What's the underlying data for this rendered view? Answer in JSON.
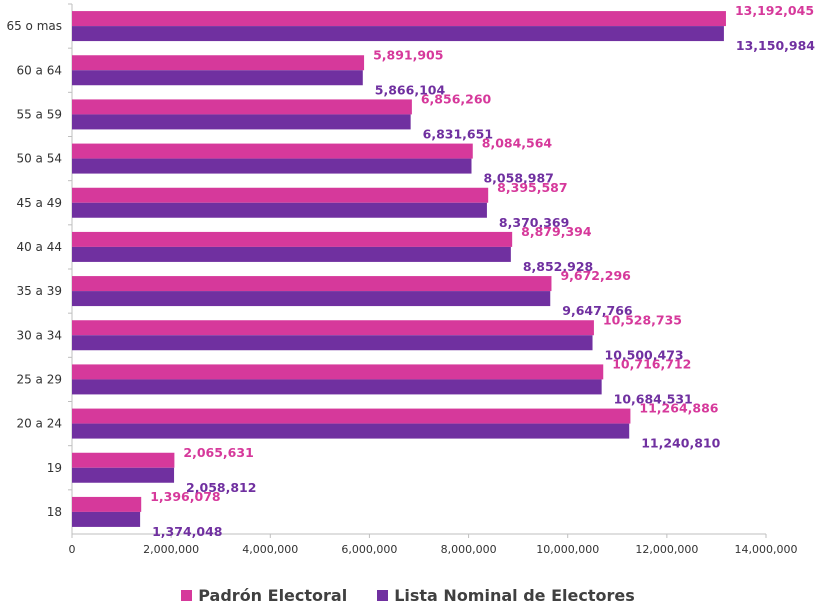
{
  "chart_data": {
    "type": "bar",
    "orientation": "horizontal",
    "categories": [
      "65 o mas",
      "60 a 64",
      "55 a 59",
      "50 a 54",
      "45 a 49",
      "40 a 44",
      "35 a 39",
      "30 a 34",
      "25 a 29",
      "20 a 24",
      "19",
      "18"
    ],
    "series": [
      {
        "name": "Padrón Electoral",
        "color": "#d6399b",
        "values": [
          13192045,
          5891905,
          6856260,
          8084564,
          8395587,
          8879394,
          9672296,
          10528735,
          10716712,
          11264886,
          2065631,
          1396078
        ],
        "labels": [
          "13,192,045",
          "5,891,905",
          "6,856,260",
          "8,084,564",
          "8,395,587",
          "8,879,394",
          "9,672,296",
          "10,528,735",
          "10,716,712",
          "11,264,886",
          "2,065,631",
          "1,396,078"
        ]
      },
      {
        "name": "Lista Nominal de Electores",
        "color": "#7030a0",
        "values": [
          13150984,
          5866104,
          6831651,
          8058987,
          8370369,
          8852928,
          9647766,
          10500473,
          10684531,
          11240810,
          2058812,
          1374048
        ],
        "labels": [
          "13,150,984",
          "5,866,104",
          "6,831,651",
          "8,058,987",
          "8,370,369",
          "8,852,928",
          "9,647,766",
          "10,500,473",
          "10,684,531",
          "11,240,810",
          "2,058,812",
          "1,374,048"
        ]
      }
    ],
    "xlim": [
      0,
      14000000
    ],
    "x_ticks": [
      0,
      2000000,
      4000000,
      6000000,
      8000000,
      10000000,
      12000000,
      14000000
    ],
    "x_tick_labels": [
      "0",
      "2,000,000",
      "4,000,000",
      "6,000,000",
      "8,000,000",
      "10,000,000",
      "12,000,000",
      "14,000,000"
    ],
    "grid": false,
    "legend_position": "bottom"
  },
  "legend": {
    "padron": "Padrón Electoral",
    "lista": "Lista Nominal de Electores",
    "padron_color": "#d6399b",
    "lista_color": "#7030a0"
  }
}
